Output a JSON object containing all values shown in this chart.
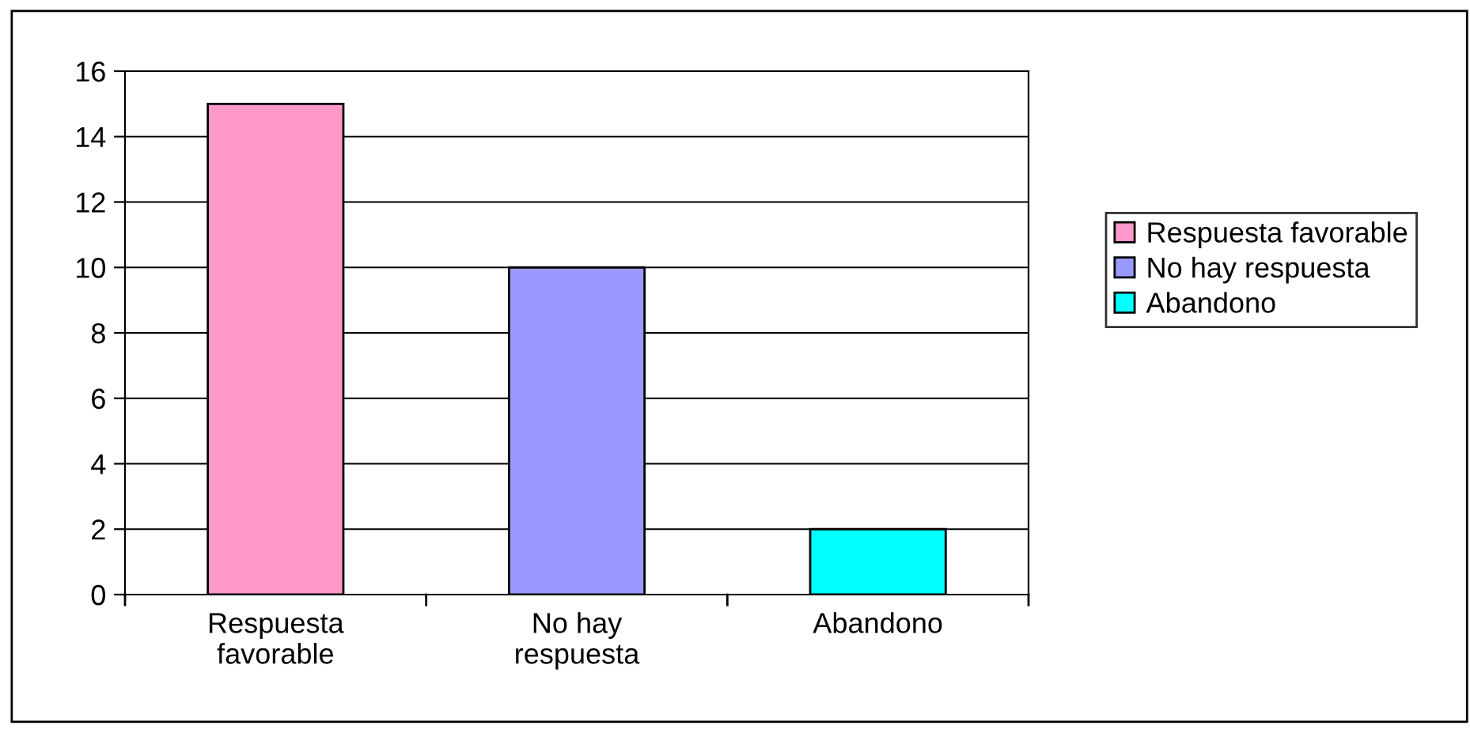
{
  "chart_data": {
    "type": "bar",
    "stacked": true,
    "categories": [
      "Respuesta\nfavorable",
      "No hay\nrespuesta",
      "Abandono"
    ],
    "series": [
      {
        "name": "Respuesta favorable",
        "color": "#ff99cc",
        "values": [
          15,
          null,
          null
        ]
      },
      {
        "name": "No hay respuesta",
        "color": "#9999ff",
        "values": [
          null,
          10,
          null
        ]
      },
      {
        "name": "Abandono",
        "color": "#00ffff",
        "values": [
          null,
          null,
          2
        ]
      }
    ],
    "ylim": [
      0,
      16
    ],
    "yticks": [
      0,
      2,
      4,
      6,
      8,
      10,
      12,
      14,
      16
    ],
    "grid": "y",
    "legend": "right"
  }
}
